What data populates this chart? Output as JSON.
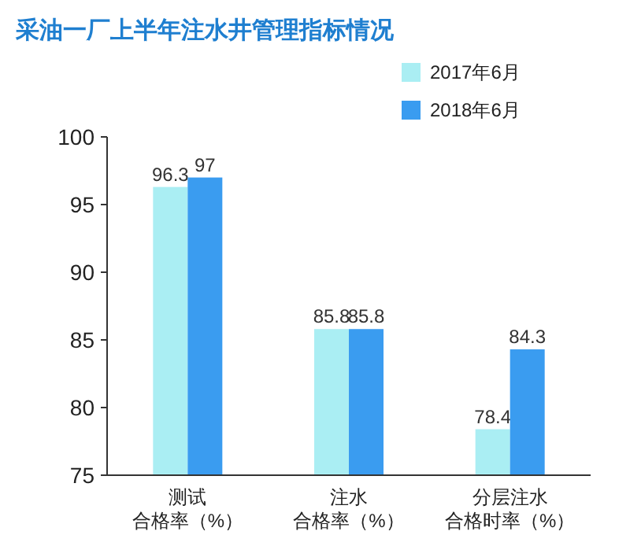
{
  "chart_data": {
    "type": "bar",
    "title": "采油一厂上半年注水井管理指标情况",
    "categories": [
      "测试合格率（%）",
      "注水合格率（%）",
      "分层注水合格时率（%）"
    ],
    "series": [
      {
        "name": "2017年6月",
        "color": "#aaeef3",
        "values": [
          96.3,
          85.8,
          78.4
        ]
      },
      {
        "name": "2018年6月",
        "color": "#3a9cf0",
        "values": [
          97,
          85.8,
          84.3
        ]
      }
    ],
    "ylim": [
      75,
      100
    ],
    "yticks": [
      75,
      80,
      85,
      90,
      95,
      100
    ],
    "data_labels": true,
    "legend": "top right",
    "grid": false
  }
}
